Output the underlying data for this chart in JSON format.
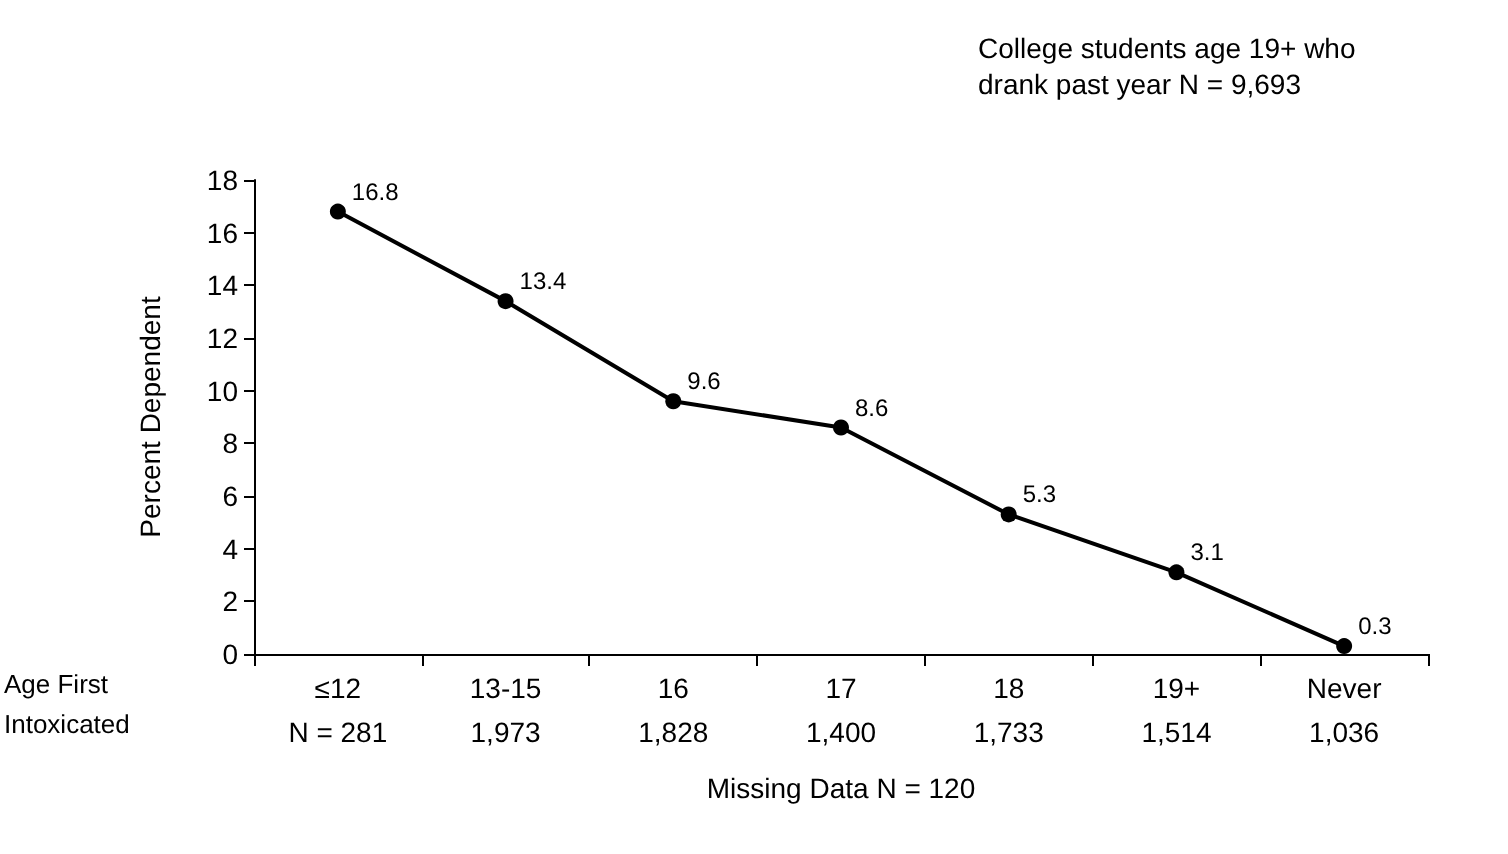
{
  "chart_data": {
    "type": "line",
    "title": "College students age 19+ who drank past year N = 9,693",
    "ylabel": "Percent Dependent",
    "xlabel": "Missing Data N = 120",
    "categories": [
      "≤12",
      "13-15",
      "16",
      "17",
      "18",
      "19+",
      "Never"
    ],
    "series": [
      {
        "color": "#000000",
        "values": [
          16.8,
          13.4,
          9.6,
          8.6,
          5.3,
          3.1,
          0.3
        ]
      }
    ],
    "ylim": [
      0,
      18
    ],
    "yticks": [
      0,
      2,
      4,
      6,
      8,
      10,
      12,
      14,
      16,
      18
    ],
    "grid": false,
    "marker": "circle",
    "line_style": "solid",
    "data_labels": true,
    "annotations": [
      "Age First Intoxicated",
      "N = 281",
      "1,973",
      "1,828",
      "1,400",
      "1,733",
      "1,514",
      "1,036"
    ]
  }
}
